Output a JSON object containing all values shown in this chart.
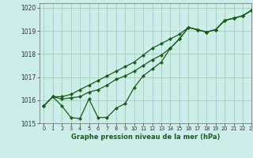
{
  "title": "Graphe pression niveau de la mer (hPa)",
  "bg_color": "#cceee8",
  "grid_color": "#aaccbb",
  "line_color": "#1a5c1a",
  "marker_color": "#1a5c1a",
  "xlim": [
    -0.5,
    23
  ],
  "ylim": [
    1015,
    1020.2
  ],
  "xticks": [
    0,
    1,
    2,
    3,
    4,
    5,
    6,
    7,
    8,
    9,
    10,
    11,
    12,
    13,
    14,
    15,
    16,
    17,
    18,
    19,
    20,
    21,
    22,
    23
  ],
  "yticks": [
    1015,
    1016,
    1017,
    1018,
    1019,
    1020
  ],
  "series1_x": [
    0,
    1,
    2,
    3,
    4,
    5,
    6,
    7,
    8,
    9,
    10,
    11,
    12,
    13,
    14,
    15,
    16,
    17,
    18,
    19,
    20,
    21,
    22,
    23
  ],
  "series1_y": [
    1015.75,
    1016.15,
    1015.75,
    1015.25,
    1015.2,
    1016.05,
    1015.25,
    1015.25,
    1015.65,
    1015.85,
    1016.55,
    1017.05,
    1017.35,
    1017.65,
    1018.25,
    1018.65,
    1019.15,
    1019.05,
    1018.95,
    1019.05,
    1019.45,
    1019.55,
    1019.65,
    1019.9
  ],
  "series2_x": [
    0,
    1,
    2,
    3,
    4,
    5,
    6,
    7,
    8,
    9,
    10,
    11,
    12,
    13,
    14,
    15,
    16,
    17,
    18,
    19,
    20,
    21,
    22,
    23
  ],
  "series2_y": [
    1015.75,
    1016.15,
    1016.05,
    1016.1,
    1016.15,
    1016.35,
    1016.45,
    1016.65,
    1016.9,
    1017.05,
    1017.25,
    1017.5,
    1017.75,
    1017.95,
    1018.25,
    1018.65,
    1019.15,
    1019.05,
    1018.95,
    1019.05,
    1019.45,
    1019.55,
    1019.65,
    1019.9
  ],
  "series3_x": [
    0,
    1,
    2,
    3,
    4,
    5,
    6,
    7,
    8,
    9,
    10,
    11,
    12,
    13,
    14,
    15,
    16,
    17,
    18,
    19,
    20,
    21,
    22,
    23
  ],
  "series3_y": [
    1015.75,
    1016.15,
    1016.15,
    1016.25,
    1016.45,
    1016.65,
    1016.85,
    1017.05,
    1017.25,
    1017.45,
    1017.65,
    1017.95,
    1018.25,
    1018.45,
    1018.65,
    1018.85,
    1019.15,
    1019.05,
    1018.95,
    1019.05,
    1019.45,
    1019.55,
    1019.65,
    1019.9
  ]
}
